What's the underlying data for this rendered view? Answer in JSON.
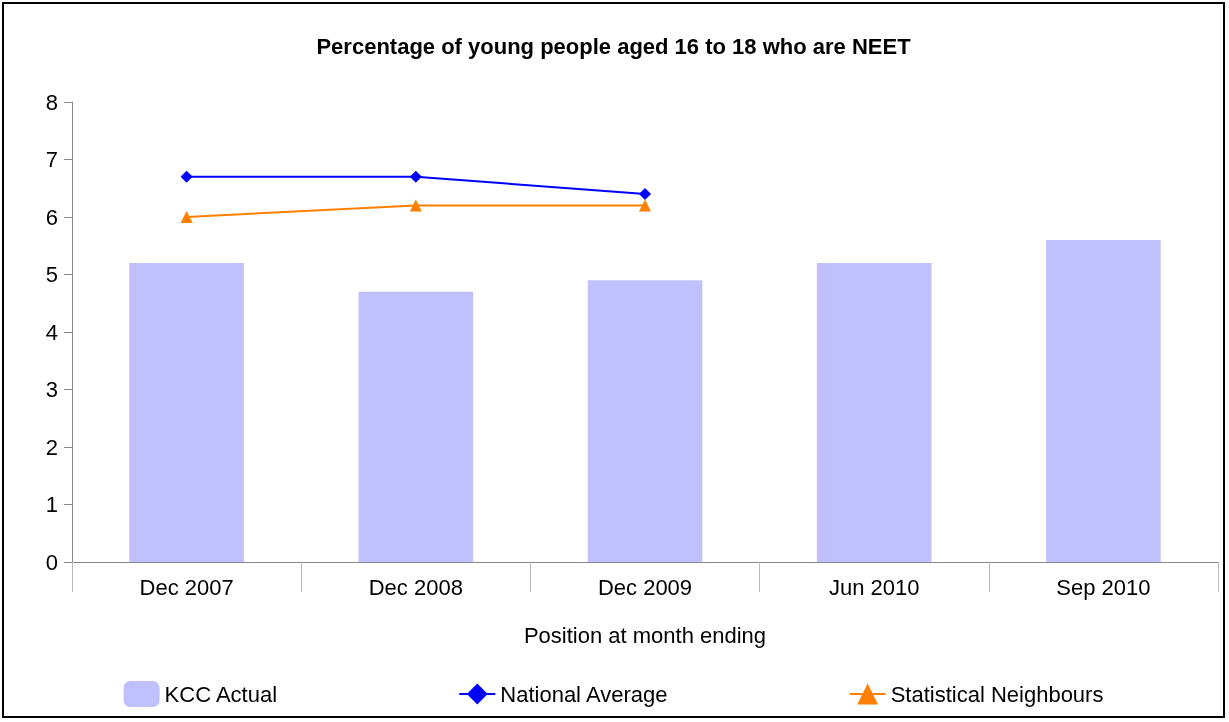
{
  "chart_data": {
    "type": "bar",
    "title": "Percentage of young people aged 16 to 18 who are NEET",
    "xlabel": "Position at month ending",
    "categories": [
      "Dec 2007",
      "Dec 2008",
      "Dec 2009",
      "Jun 2010",
      "Sep 2010"
    ],
    "series": [
      {
        "name": "KCC Actual",
        "color": "#c0c0ff",
        "values": [
          5.2,
          4.7,
          4.9,
          5.2,
          5.6
        ]
      },
      {
        "name": "National Average",
        "type": "line",
        "color": "#0000ff",
        "marker": "diamond",
        "values": [
          6.7,
          6.7,
          6.4,
          null,
          null
        ]
      },
      {
        "name": "Statistical Neighbours",
        "type": "line",
        "color": "#ff8000",
        "marker": "triangle",
        "values": [
          6.0,
          6.2,
          6.2,
          null,
          null
        ]
      }
    ],
    "ylim": [
      0,
      8
    ],
    "yticks": [
      0,
      1,
      2,
      3,
      4,
      5,
      6,
      7,
      8
    ],
    "grid": false,
    "legend": "bottom"
  }
}
